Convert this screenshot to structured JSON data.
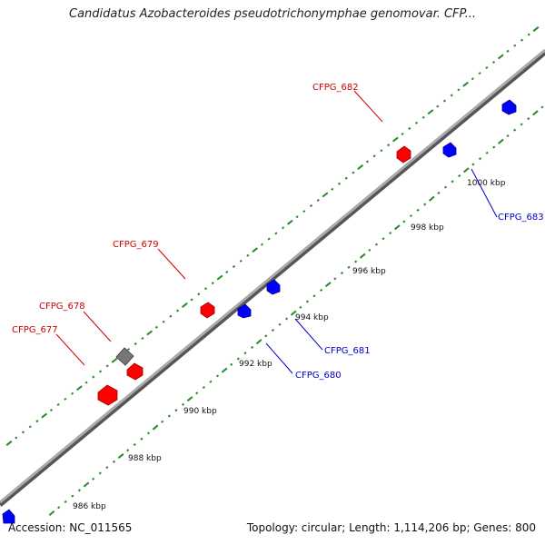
{
  "title": "Candidatus Azobacteroides pseudotrichonymphae genomovar. CFP...",
  "footer": {
    "accession": "Accession: NC_011565",
    "summary": "Topology: circular; Length: 1,114,206 bp; Genes: 800"
  },
  "colors": {
    "forward_gene": "#ff0000",
    "reverse_gene": "#0000ff",
    "other_gene": "#666666",
    "ticks": "#228b22",
    "backbone": "#888888"
  },
  "ticks": [
    {
      "label": "986 kbp"
    },
    {
      "label": "988 kbp"
    },
    {
      "label": "990 kbp"
    },
    {
      "label": "992 kbp"
    },
    {
      "label": "994 kbp"
    },
    {
      "label": "996 kbp"
    },
    {
      "label": "998 kbp"
    },
    {
      "label": "1000 kbp"
    }
  ],
  "genes": [
    {
      "id": "CFPG_677",
      "strand": "forward",
      "label_color": "#cc0000"
    },
    {
      "id": "CFPG_678",
      "strand": "forward",
      "label_color": "#cc0000"
    },
    {
      "id": "CFPG_679",
      "strand": "forward",
      "label_color": "#cc0000"
    },
    {
      "id": "CFPG_682",
      "strand": "forward",
      "label_color": "#cc0000"
    },
    {
      "id": "CFPG_680",
      "strand": "reverse",
      "label_color": "#0000cc"
    },
    {
      "id": "CFPG_681",
      "strand": "reverse",
      "label_color": "#0000cc"
    },
    {
      "id": "CFPG_683",
      "strand": "reverse",
      "label_color": "#0000cc"
    }
  ]
}
